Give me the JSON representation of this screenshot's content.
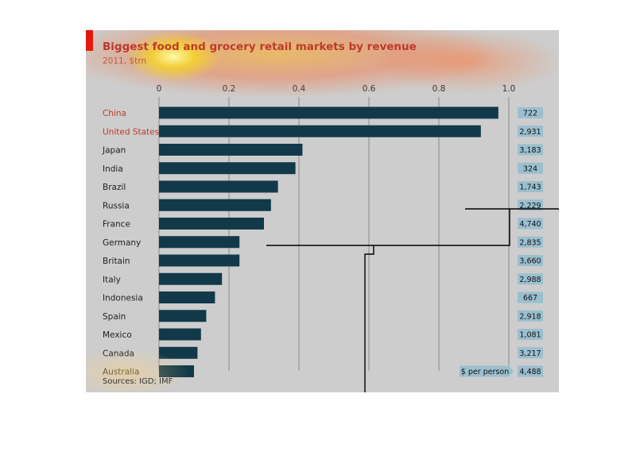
{
  "colors": {
    "bar": "#12394a",
    "box": "#9bbfcf",
    "highlight_label": "#c0392b",
    "normal_label": "#222222",
    "gridline": "#8a8a8a"
  },
  "chart_data": {
    "type": "bar",
    "orientation": "horizontal",
    "title": "Biggest food and grocery retail markets by revenue",
    "subtitle": "2011, $trn",
    "xlim": [
      0,
      1.0
    ],
    "xticks": [
      "0",
      "0.2",
      "0.4",
      "0.6",
      "0.8",
      "1.0"
    ],
    "categories": [
      "China",
      "United States",
      "Japan",
      "India",
      "Brazil",
      "Russia",
      "France",
      "Germany",
      "Britain",
      "Italy",
      "Indonesia",
      "Spain",
      "Mexico",
      "Canada",
      "Australia"
    ],
    "values": [
      0.97,
      0.92,
      0.41,
      0.39,
      0.34,
      0.32,
      0.3,
      0.23,
      0.23,
      0.18,
      0.16,
      0.135,
      0.12,
      0.11,
      0.1
    ],
    "highlighted": [
      "China",
      "United States"
    ],
    "per_person": {
      "label": "$ per person",
      "values": [
        "722",
        "2,931",
        "3,183",
        "324",
        "1,743",
        "2,229",
        "4,740",
        "2,835",
        "3,660",
        "2,988",
        "667",
        "2,918",
        "1,081",
        "3,217",
        "4,488"
      ]
    },
    "sources": "Sources: IGD; IMF",
    "grid": true
  }
}
